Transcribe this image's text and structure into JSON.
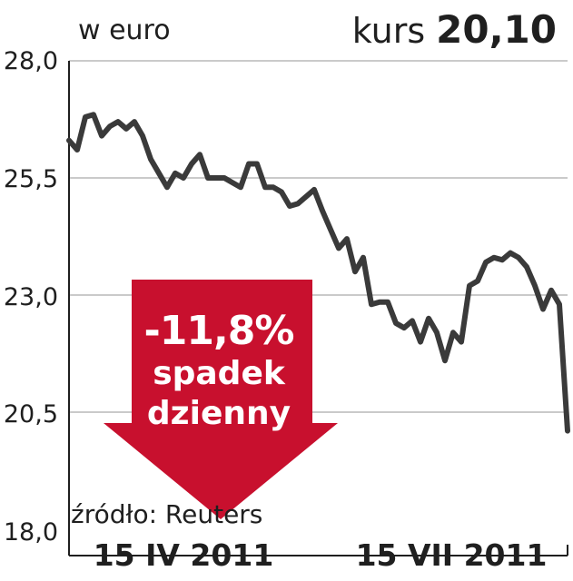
{
  "header": {
    "unit_label": "w euro",
    "kurs_label": "kurs",
    "kurs_value": "20,10"
  },
  "callout": {
    "change": "-11,8%",
    "line1": "spadek",
    "line2": "dzienny",
    "color": "#c8102e"
  },
  "source": "źródło: Reuters",
  "colors": {
    "line": "#3a3a3a",
    "grid": "#b8b8b8",
    "axis": "#1f1f1f"
  },
  "chart_data": {
    "type": "line",
    "title": "",
    "xlabel": "",
    "ylabel": "w euro",
    "ylim": [
      18.0,
      28.0
    ],
    "yticks": [
      {
        "value": 28.0,
        "label": "28,0"
      },
      {
        "value": 25.5,
        "label": "25,5"
      },
      {
        "value": 23.0,
        "label": "23,0"
      },
      {
        "value": 20.5,
        "label": "20,5"
      },
      {
        "value": 18.0,
        "label": "18,0"
      }
    ],
    "x_tick_labels": [
      "15 IV 2011",
      "15 VII 2011"
    ],
    "grid": true,
    "series": [
      {
        "values": [
          26.3,
          26.1,
          26.8,
          26.85,
          26.4,
          26.6,
          26.7,
          26.55,
          26.7,
          26.4,
          25.9,
          25.6,
          25.3,
          25.6,
          25.5,
          25.8,
          26.0,
          25.5,
          25.5,
          25.5,
          25.4,
          25.3,
          25.8,
          25.8,
          25.3,
          25.3,
          25.2,
          24.9,
          24.95,
          25.1,
          25.25,
          24.8,
          24.4,
          24.0,
          24.2,
          23.5,
          23.8,
          22.8,
          22.85,
          22.85,
          22.4,
          22.3,
          22.45,
          22.0,
          22.5,
          22.2,
          21.6,
          22.2,
          22.0,
          23.2,
          23.3,
          23.7,
          23.8,
          23.75,
          23.9,
          23.8,
          23.6,
          23.2,
          22.7,
          23.1,
          22.8,
          20.1
        ]
      }
    ]
  }
}
